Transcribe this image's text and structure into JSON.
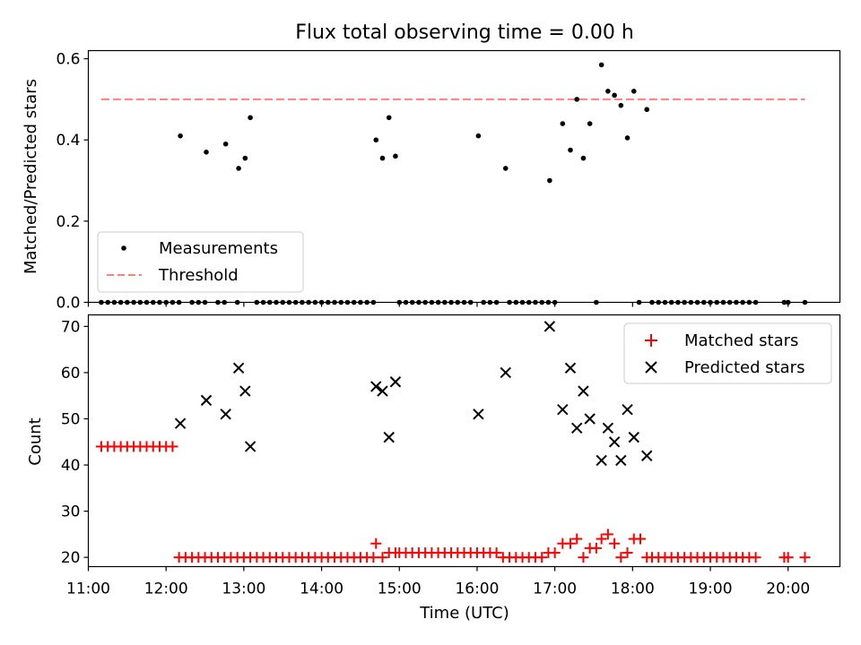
{
  "title": "Flux total observing time = 0.00 h",
  "chart_data": [
    {
      "type": "scatter",
      "ylabel": "Matched/Predicted stars",
      "ylim": [
        0,
        0.62
      ],
      "yticks": [
        0.0,
        0.2,
        0.4,
        0.6
      ],
      "ytick_labels": [
        "0.0",
        "0.2",
        "0.4",
        "0.6"
      ],
      "legend_position": "lower-left",
      "series": [
        {
          "name": "Measurements",
          "kind": "points",
          "color": "#000000",
          "points": [
            [
              "11:10",
              0
            ],
            [
              "11:15",
              0
            ],
            [
              "11:20",
              0
            ],
            [
              "11:25",
              0
            ],
            [
              "11:30",
              0
            ],
            [
              "11:35",
              0
            ],
            [
              "11:40",
              0
            ],
            [
              "11:45",
              0
            ],
            [
              "11:50",
              0
            ],
            [
              "11:55",
              0
            ],
            [
              "12:00",
              0
            ],
            [
              "12:05",
              0
            ],
            [
              "12:10",
              0
            ],
            [
              "12:11",
              0.41
            ],
            [
              "12:20",
              0
            ],
            [
              "12:25",
              0
            ],
            [
              "12:30",
              0
            ],
            [
              "12:31",
              0.37
            ],
            [
              "12:40",
              0
            ],
            [
              "12:45",
              0
            ],
            [
              "12:46",
              0.39
            ],
            [
              "12:55",
              0
            ],
            [
              "12:56",
              0.33
            ],
            [
              "13:01",
              0.355
            ],
            [
              "13:05",
              0.455
            ],
            [
              "13:10",
              0
            ],
            [
              "13:15",
              0
            ],
            [
              "13:20",
              0
            ],
            [
              "13:25",
              0
            ],
            [
              "13:30",
              0
            ],
            [
              "13:35",
              0
            ],
            [
              "13:40",
              0
            ],
            [
              "13:45",
              0
            ],
            [
              "13:50",
              0
            ],
            [
              "13:55",
              0
            ],
            [
              "14:00",
              0
            ],
            [
              "14:05",
              0
            ],
            [
              "14:10",
              0
            ],
            [
              "14:15",
              0
            ],
            [
              "14:20",
              0
            ],
            [
              "14:25",
              0
            ],
            [
              "14:30",
              0
            ],
            [
              "14:35",
              0
            ],
            [
              "14:40",
              0
            ],
            [
              "14:42",
              0.4
            ],
            [
              "14:47",
              0.355
            ],
            [
              "14:52",
              0.455
            ],
            [
              "14:57",
              0.36
            ],
            [
              "15:00",
              0
            ],
            [
              "15:05",
              0
            ],
            [
              "15:10",
              0
            ],
            [
              "15:15",
              0
            ],
            [
              "15:20",
              0
            ],
            [
              "15:25",
              0
            ],
            [
              "15:30",
              0
            ],
            [
              "15:35",
              0
            ],
            [
              "15:40",
              0
            ],
            [
              "15:45",
              0
            ],
            [
              "15:50",
              0
            ],
            [
              "15:55",
              0
            ],
            [
              "16:01",
              0.41
            ],
            [
              "16:05",
              0
            ],
            [
              "16:10",
              0
            ],
            [
              "16:15",
              0
            ],
            [
              "16:22",
              0.33
            ],
            [
              "16:25",
              0
            ],
            [
              "16:30",
              0
            ],
            [
              "16:35",
              0
            ],
            [
              "16:40",
              0
            ],
            [
              "16:45",
              0
            ],
            [
              "16:50",
              0
            ],
            [
              "16:55",
              0
            ],
            [
              "16:56",
              0.3
            ],
            [
              "17:00",
              0
            ],
            [
              "17:06",
              0.44
            ],
            [
              "17:12",
              0.375
            ],
            [
              "17:17",
              0.5
            ],
            [
              "17:22",
              0.355
            ],
            [
              "17:27",
              0.44
            ],
            [
              "17:32",
              0
            ],
            [
              "17:36",
              0.585
            ],
            [
              "17:41",
              0.52
            ],
            [
              "17:46",
              0.51
            ],
            [
              "17:51",
              0.485
            ],
            [
              "17:56",
              0.405
            ],
            [
              "18:01",
              0.52
            ],
            [
              "18:05",
              0
            ],
            [
              "18:11",
              0.475
            ],
            [
              "18:15",
              0
            ],
            [
              "18:20",
              0
            ],
            [
              "18:25",
              0
            ],
            [
              "18:30",
              0
            ],
            [
              "18:35",
              0
            ],
            [
              "18:40",
              0
            ],
            [
              "18:45",
              0
            ],
            [
              "18:50",
              0
            ],
            [
              "18:55",
              0
            ],
            [
              "19:00",
              0
            ],
            [
              "19:05",
              0
            ],
            [
              "19:10",
              0
            ],
            [
              "19:15",
              0
            ],
            [
              "19:20",
              0
            ],
            [
              "19:25",
              0
            ],
            [
              "19:30",
              0
            ],
            [
              "19:35",
              0
            ],
            [
              "19:57",
              0
            ],
            [
              "20:00",
              0
            ],
            [
              "20:13",
              0
            ]
          ]
        },
        {
          "name": "Threshold",
          "kind": "dashed-line",
          "color": "#ff7f7f",
          "points": [
            [
              "11:10",
              0.5
            ],
            [
              "20:13",
              0.5
            ]
          ]
        }
      ]
    },
    {
      "type": "scatter",
      "ylabel": "Count",
      "xlabel": "Time (UTC)",
      "ylim": [
        18,
        72.5
      ],
      "yticks": [
        20,
        30,
        40,
        50,
        60,
        70
      ],
      "ytick_labels": [
        "20",
        "30",
        "40",
        "50",
        "60",
        "70"
      ],
      "xlim": [
        "11:00",
        "20:40"
      ],
      "xticks": [
        "11:00",
        "12:00",
        "13:00",
        "14:00",
        "15:00",
        "16:00",
        "17:00",
        "18:00",
        "19:00",
        "20:00"
      ],
      "legend_position": "upper-right",
      "series": [
        {
          "name": "Matched stars",
          "kind": "plus",
          "color": "#ff0000",
          "points": [
            [
              "11:10",
              44
            ],
            [
              "11:15",
              44
            ],
            [
              "11:20",
              44
            ],
            [
              "11:25",
              44
            ],
            [
              "11:30",
              44
            ],
            [
              "11:35",
              44
            ],
            [
              "11:40",
              44
            ],
            [
              "11:45",
              44
            ],
            [
              "11:50",
              44
            ],
            [
              "11:55",
              44
            ],
            [
              "12:00",
              44
            ],
            [
              "12:05",
              44
            ],
            [
              "12:10",
              20
            ],
            [
              "12:15",
              20
            ],
            [
              "12:20",
              20
            ],
            [
              "12:25",
              20
            ],
            [
              "12:30",
              20
            ],
            [
              "12:35",
              20
            ],
            [
              "12:40",
              20
            ],
            [
              "12:45",
              20
            ],
            [
              "12:50",
              20
            ],
            [
              "12:55",
              20
            ],
            [
              "13:00",
              20
            ],
            [
              "13:05",
              20
            ],
            [
              "13:10",
              20
            ],
            [
              "13:15",
              20
            ],
            [
              "13:20",
              20
            ],
            [
              "13:25",
              20
            ],
            [
              "13:30",
              20
            ],
            [
              "13:35",
              20
            ],
            [
              "13:40",
              20
            ],
            [
              "13:45",
              20
            ],
            [
              "13:50",
              20
            ],
            [
              "13:55",
              20
            ],
            [
              "14:00",
              20
            ],
            [
              "14:05",
              20
            ],
            [
              "14:10",
              20
            ],
            [
              "14:15",
              20
            ],
            [
              "14:20",
              20
            ],
            [
              "14:25",
              20
            ],
            [
              "14:30",
              20
            ],
            [
              "14:35",
              20
            ],
            [
              "14:40",
              20
            ],
            [
              "14:42",
              23
            ],
            [
              "14:47",
              20
            ],
            [
              "14:52",
              21
            ],
            [
              "14:57",
              21
            ],
            [
              "15:00",
              21
            ],
            [
              "15:05",
              21
            ],
            [
              "15:10",
              21
            ],
            [
              "15:15",
              21
            ],
            [
              "15:20",
              21
            ],
            [
              "15:25",
              21
            ],
            [
              "15:30",
              21
            ],
            [
              "15:35",
              21
            ],
            [
              "15:40",
              21
            ],
            [
              "15:45",
              21
            ],
            [
              "15:50",
              21
            ],
            [
              "15:55",
              21
            ],
            [
              "16:00",
              21
            ],
            [
              "16:05",
              21
            ],
            [
              "16:10",
              21
            ],
            [
              "16:15",
              21
            ],
            [
              "16:20",
              20
            ],
            [
              "16:25",
              20
            ],
            [
              "16:30",
              20
            ],
            [
              "16:35",
              20
            ],
            [
              "16:40",
              20
            ],
            [
              "16:45",
              20
            ],
            [
              "16:50",
              20
            ],
            [
              "16:55",
              21
            ],
            [
              "17:00",
              21
            ],
            [
              "17:06",
              23
            ],
            [
              "17:12",
              23
            ],
            [
              "17:17",
              24
            ],
            [
              "17:22",
              20
            ],
            [
              "17:27",
              22
            ],
            [
              "17:32",
              22
            ],
            [
              "17:36",
              24
            ],
            [
              "17:41",
              25
            ],
            [
              "17:46",
              23
            ],
            [
              "17:51",
              20
            ],
            [
              "17:56",
              21
            ],
            [
              "18:01",
              24
            ],
            [
              "18:06",
              24
            ],
            [
              "18:11",
              20
            ],
            [
              "18:15",
              20
            ],
            [
              "18:20",
              20
            ],
            [
              "18:25",
              20
            ],
            [
              "18:30",
              20
            ],
            [
              "18:35",
              20
            ],
            [
              "18:40",
              20
            ],
            [
              "18:45",
              20
            ],
            [
              "18:50",
              20
            ],
            [
              "18:55",
              20
            ],
            [
              "19:00",
              20
            ],
            [
              "19:05",
              20
            ],
            [
              "19:10",
              20
            ],
            [
              "19:15",
              20
            ],
            [
              "19:20",
              20
            ],
            [
              "19:25",
              20
            ],
            [
              "19:30",
              20
            ],
            [
              "19:35",
              20
            ],
            [
              "19:57",
              20
            ],
            [
              "20:00",
              20
            ],
            [
              "20:13",
              20
            ]
          ]
        },
        {
          "name": "Predicted stars",
          "kind": "x",
          "color": "#000000",
          "points": [
            [
              "12:11",
              49
            ],
            [
              "12:31",
              54
            ],
            [
              "12:46",
              51
            ],
            [
              "12:56",
              61
            ],
            [
              "13:01",
              56
            ],
            [
              "13:05",
              44
            ],
            [
              "14:42",
              57
            ],
            [
              "14:47",
              56
            ],
            [
              "14:52",
              46
            ],
            [
              "14:57",
              58
            ],
            [
              "16:01",
              51
            ],
            [
              "16:22",
              60
            ],
            [
              "16:56",
              70
            ],
            [
              "17:06",
              52
            ],
            [
              "17:12",
              61
            ],
            [
              "17:17",
              48
            ],
            [
              "17:22",
              56
            ],
            [
              "17:27",
              50
            ],
            [
              "17:36",
              41
            ],
            [
              "17:41",
              48
            ],
            [
              "17:46",
              45
            ],
            [
              "17:51",
              41
            ],
            [
              "17:56",
              52
            ],
            [
              "18:01",
              46
            ],
            [
              "18:11",
              42
            ]
          ]
        }
      ]
    }
  ]
}
